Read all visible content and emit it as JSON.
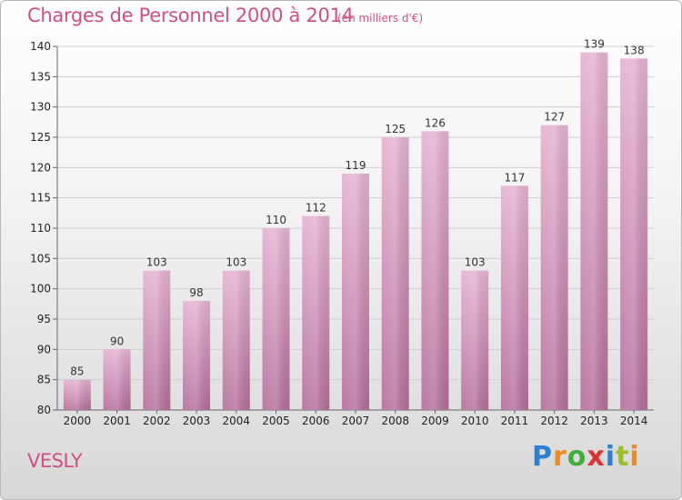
{
  "chart_data": {
    "type": "bar",
    "title": "Charges de Personnel 2000 à 2014",
    "subtitle": "(en milliers d'€)",
    "categories": [
      "2000",
      "2001",
      "2002",
      "2003",
      "2004",
      "2005",
      "2006",
      "2007",
      "2008",
      "2009",
      "2010",
      "2011",
      "2012",
      "2013",
      "2014"
    ],
    "values": [
      85,
      90,
      103,
      98,
      103,
      110,
      112,
      119,
      125,
      126,
      103,
      117,
      127,
      139,
      138
    ],
    "ylim": [
      80,
      140
    ],
    "yticks": [
      80,
      85,
      90,
      95,
      100,
      105,
      110,
      115,
      120,
      125,
      130,
      135,
      140
    ],
    "grid": true,
    "bar_color": "#dc9fc4",
    "title_color": "#d04f86"
  },
  "location_label": "VESLY",
  "logo": {
    "letters": [
      "P",
      "r",
      "o",
      "x",
      "i",
      "t",
      "i"
    ]
  }
}
